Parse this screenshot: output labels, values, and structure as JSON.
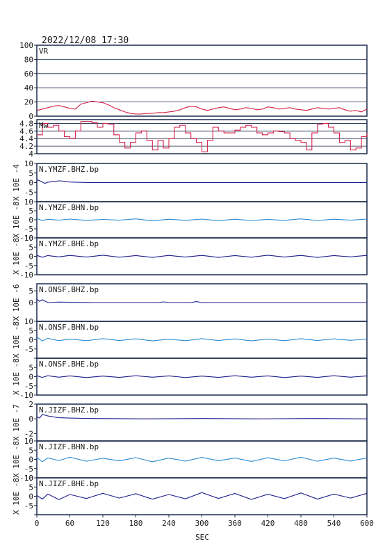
{
  "header": {
    "timestamp": "2022/12/08 17:30"
  },
  "colors": {
    "frame": "#1a2a4a",
    "vr": "#d4204a",
    "mw": "#d4204a",
    "navy": "#1c1c8c",
    "blue": "#2a8ad0",
    "grid": "#1a2a4a"
  },
  "chart_data": {
    "type": "line",
    "xlabel": "SEC",
    "xlim": [
      0,
      600
    ],
    "xticks": [
      0,
      60,
      120,
      180,
      240,
      300,
      360,
      420,
      480,
      540,
      600
    ],
    "panels": [
      {
        "key": "vr",
        "label": "VR",
        "units": "",
        "color": "vr",
        "ylim": [
          0,
          100
        ],
        "ticks": [
          0,
          20,
          40,
          60,
          80,
          100
        ],
        "grid": true,
        "style": "line",
        "x": [
          0,
          10,
          20,
          30,
          40,
          50,
          60,
          70,
          80,
          90,
          100,
          110,
          120,
          130,
          140,
          150,
          160,
          170,
          180,
          190,
          200,
          210,
          220,
          230,
          240,
          250,
          260,
          270,
          280,
          290,
          300,
          310,
          320,
          330,
          340,
          350,
          360,
          370,
          380,
          390,
          400,
          410,
          420,
          430,
          440,
          450,
          460,
          470,
          480,
          490,
          500,
          510,
          520,
          530,
          540,
          550,
          560,
          570,
          580,
          590,
          600
        ],
        "values": [
          8,
          10,
          12,
          14,
          15,
          13,
          11,
          10,
          17,
          19,
          21,
          20,
          19,
          16,
          12,
          9,
          6,
          4,
          3,
          3,
          4,
          4,
          5,
          5,
          6,
          7,
          9,
          12,
          14,
          13,
          10,
          8,
          10,
          12,
          13,
          11,
          9,
          10,
          12,
          11,
          9,
          10,
          13,
          12,
          10,
          11,
          12,
          10,
          9,
          8,
          10,
          12,
          11,
          10,
          11,
          12,
          9,
          7,
          8,
          6,
          10
        ]
      },
      {
        "key": "mw",
        "label": "Mw",
        "units": "",
        "color": "mw",
        "ylim": [
          4.0,
          4.9
        ],
        "ticks": [
          4.0,
          4.2,
          4.4,
          4.6,
          4.8
        ],
        "grid": true,
        "style": "step",
        "x": [
          0,
          10,
          20,
          30,
          40,
          50,
          60,
          70,
          80,
          90,
          100,
          110,
          120,
          130,
          140,
          150,
          160,
          170,
          180,
          190,
          200,
          210,
          220,
          230,
          240,
          250,
          260,
          270,
          280,
          290,
          300,
          310,
          320,
          330,
          340,
          350,
          360,
          370,
          380,
          390,
          400,
          410,
          420,
          430,
          440,
          450,
          460,
          470,
          480,
          490,
          500,
          510,
          520,
          530,
          540,
          550,
          560,
          570,
          580,
          590,
          600
        ],
        "values": [
          4.5,
          4.8,
          4.7,
          4.75,
          4.6,
          4.45,
          4.4,
          4.6,
          4.85,
          4.85,
          4.82,
          4.7,
          4.8,
          4.78,
          4.5,
          4.3,
          4.15,
          4.3,
          4.55,
          4.6,
          4.35,
          4.1,
          4.35,
          4.15,
          4.4,
          4.7,
          4.75,
          4.55,
          4.4,
          4.3,
          4.05,
          4.35,
          4.7,
          4.6,
          4.55,
          4.55,
          4.62,
          4.7,
          4.75,
          4.7,
          4.55,
          4.5,
          4.55,
          4.6,
          4.58,
          4.55,
          4.4,
          4.35,
          4.3,
          4.1,
          4.55,
          4.78,
          4.8,
          4.7,
          4.55,
          4.3,
          4.35,
          4.1,
          4.15,
          4.45,
          4.55
        ]
      },
      {
        "key": "ymzf_bhz",
        "label": "N.YMZF.BHZ.bp",
        "units": "X 10E -4",
        "color": "navy",
        "ylim": [
          -10,
          10
        ],
        "ticks": [
          10,
          5,
          0,
          -5,
          -10
        ],
        "tick_labels": [
          "10",
          "5",
          "0",
          "-5",
          ""
        ],
        "grid": false,
        "style": "line",
        "x": [
          0,
          5,
          10,
          15,
          20,
          30,
          40,
          50,
          60,
          80,
          100,
          600
        ],
        "values": [
          1.5,
          1.0,
          0.3,
          -0.4,
          0.2,
          0.6,
          0.9,
          0.7,
          0.3,
          0.1,
          0,
          0
        ]
      },
      {
        "key": "ymzf_bhn",
        "label": "N.YMZF.BHN.bp",
        "units": "X 10E -8",
        "color": "blue",
        "ylim": [
          -10,
          10
        ],
        "ticks": [
          10,
          5,
          0,
          -5,
          -10
        ],
        "tick_labels": [
          "10",
          "5",
          "0",
          "-5",
          "-10"
        ],
        "grid": false,
        "style": "line",
        "x": [
          0,
          10,
          20,
          40,
          60,
          90,
          120,
          150,
          180,
          210,
          240,
          270,
          300,
          330,
          360,
          390,
          420,
          450,
          480,
          510,
          540,
          570,
          600
        ],
        "values": [
          0.6,
          -0.4,
          0.3,
          -0.2,
          0.4,
          -0.3,
          0.2,
          -0.2,
          0.5,
          -0.6,
          0.3,
          -0.3,
          0.4,
          -0.5,
          0.3,
          -0.4,
          0.2,
          -0.3,
          0.5,
          -0.4,
          0.3,
          -0.2,
          0.4
        ]
      },
      {
        "key": "ymzf_bhe",
        "label": "N.YMZF.BHE.bp",
        "units": "X 10E -8",
        "color": "navy",
        "ylim": [
          -10,
          10
        ],
        "ticks": [
          10,
          5,
          0,
          -5,
          -10
        ],
        "tick_labels": [
          "10",
          "5",
          "0",
          "-5",
          "-10"
        ],
        "grid": false,
        "style": "line",
        "x": [
          0,
          10,
          20,
          40,
          60,
          90,
          120,
          150,
          180,
          210,
          240,
          270,
          300,
          330,
          360,
          390,
          420,
          450,
          480,
          510,
          540,
          570,
          600
        ],
        "values": [
          0.5,
          -0.5,
          0.4,
          -0.3,
          0.5,
          -0.4,
          0.6,
          -0.5,
          0.4,
          -0.6,
          0.5,
          -0.4,
          0.5,
          -0.6,
          0.4,
          -0.5,
          0.6,
          -0.4,
          0.5,
          -0.6,
          0.4,
          -0.3,
          0.5
        ]
      },
      {
        "key": "onsf_bhz",
        "label": "N.ONSF.BHZ.bp",
        "units": "X 10E -6",
        "color": "navy",
        "ylim": [
          -8,
          8
        ],
        "ticks": [
          5,
          0
        ],
        "tick_labels": [
          "5",
          "0"
        ],
        "grid": false,
        "style": "line",
        "x": [
          0,
          5,
          10,
          20,
          40,
          100,
          220,
          230,
          240,
          280,
          290,
          300,
          600
        ],
        "values": [
          1.5,
          0.5,
          1.2,
          0,
          0.2,
          0,
          0,
          0.3,
          0,
          0,
          0.4,
          0,
          0
        ]
      },
      {
        "key": "onsf_bhn",
        "label": "N.ONSF.BHN.bp",
        "units": "X 10E -8",
        "color": "blue",
        "ylim": [
          -10,
          10
        ],
        "ticks": [
          10,
          5,
          0,
          -5,
          -10
        ],
        "tick_labels": [
          "10",
          "5",
          "0",
          "-5",
          ""
        ],
        "grid": false,
        "style": "line",
        "x": [
          0,
          10,
          20,
          40,
          60,
          90,
          120,
          150,
          180,
          210,
          240,
          270,
          300,
          330,
          360,
          390,
          420,
          450,
          480,
          510,
          540,
          570,
          600
        ],
        "values": [
          1.5,
          -0.6,
          0.8,
          -0.5,
          0.4,
          -0.5,
          0.6,
          -0.4,
          0.5,
          -0.6,
          0.3,
          -0.5,
          0.6,
          -0.4,
          0.5,
          -0.6,
          0.4,
          -0.5,
          0.6,
          -0.4,
          0.5,
          -0.3,
          0.4
        ]
      },
      {
        "key": "onsf_bhe",
        "label": "N.ONSF.BHE.bp",
        "units": "X 10E -8",
        "color": "navy",
        "ylim": [
          -10,
          10
        ],
        "ticks": [
          10,
          5,
          0,
          -5,
          -10
        ],
        "tick_labels": [
          "",
          "5",
          "0",
          "-5",
          "-10"
        ],
        "grid": false,
        "style": "line",
        "x": [
          0,
          10,
          20,
          40,
          60,
          90,
          120,
          150,
          180,
          210,
          240,
          270,
          300,
          330,
          360,
          390,
          420,
          450,
          480,
          510,
          540,
          570,
          600
        ],
        "values": [
          0.5,
          -0.4,
          0.5,
          -0.3,
          0.4,
          -0.5,
          0.3,
          -0.4,
          0.5,
          -0.3,
          0.4,
          -0.5,
          0.3,
          -0.4,
          0.5,
          -0.3,
          0.4,
          -0.5,
          0.3,
          -0.4,
          0.5,
          -0.3,
          0.4
        ]
      },
      {
        "key": "jizf_bhz",
        "label": "N.JIZF.BHZ.bp",
        "units": "X 10E -7",
        "color": "navy",
        "ylim": [
          -3,
          2
        ],
        "ticks": [
          2,
          0,
          -2
        ],
        "tick_labels": [
          "2",
          "0",
          "-2"
        ],
        "grid": false,
        "style": "line",
        "x": [
          0,
          5,
          10,
          20,
          40,
          60,
          100,
          200,
          300,
          400,
          500,
          600
        ],
        "values": [
          0.3,
          0.1,
          0.6,
          0.4,
          0.15,
          0.1,
          0.05,
          0,
          0.05,
          0,
          0.05,
          0
        ]
      },
      {
        "key": "jizf_bhn",
        "label": "N.JIZF.BHN.bp",
        "units": "X 10E -8",
        "color": "blue",
        "ylim": [
          -10,
          10
        ],
        "ticks": [
          10,
          5,
          0,
          -5,
          -10
        ],
        "tick_labels": [
          "10",
          "5",
          "0",
          "-5",
          "-10"
        ],
        "grid": false,
        "style": "line",
        "x": [
          0,
          10,
          20,
          40,
          60,
          90,
          120,
          150,
          180,
          210,
          240,
          270,
          300,
          330,
          360,
          390,
          420,
          450,
          480,
          510,
          540,
          570,
          600
        ],
        "values": [
          1.0,
          -1.2,
          0.8,
          -0.6,
          1.2,
          -1.0,
          0.6,
          -0.8,
          1.0,
          -1.3,
          0.7,
          -0.9,
          1.1,
          -0.7,
          0.8,
          -1.1,
          0.9,
          -0.8,
          1.2,
          -1.0,
          0.7,
          -0.9,
          0.8
        ]
      },
      {
        "key": "jizf_bhe",
        "label": "N.JIZF.BHE.bp",
        "units": "X 10E -8",
        "color": "navy",
        "ylim": [
          -10,
          10
        ],
        "ticks": [
          10,
          5,
          0,
          -5,
          -10
        ],
        "tick_labels": [
          "10",
          "5",
          "0",
          "-5",
          ""
        ],
        "grid": false,
        "style": "line",
        "x": [
          0,
          10,
          20,
          40,
          60,
          90,
          120,
          150,
          180,
          210,
          240,
          270,
          300,
          330,
          360,
          390,
          420,
          450,
          480,
          510,
          540,
          570,
          600
        ],
        "values": [
          0.5,
          -1.5,
          1.2,
          -1.8,
          1.0,
          -1.2,
          1.6,
          -1.0,
          1.4,
          -1.6,
          1.0,
          -1.4,
          2.0,
          -1.2,
          1.5,
          -1.7,
          1.1,
          -1.3,
          1.8,
          -1.5,
          1.2,
          -1.0,
          1.6
        ]
      }
    ]
  }
}
